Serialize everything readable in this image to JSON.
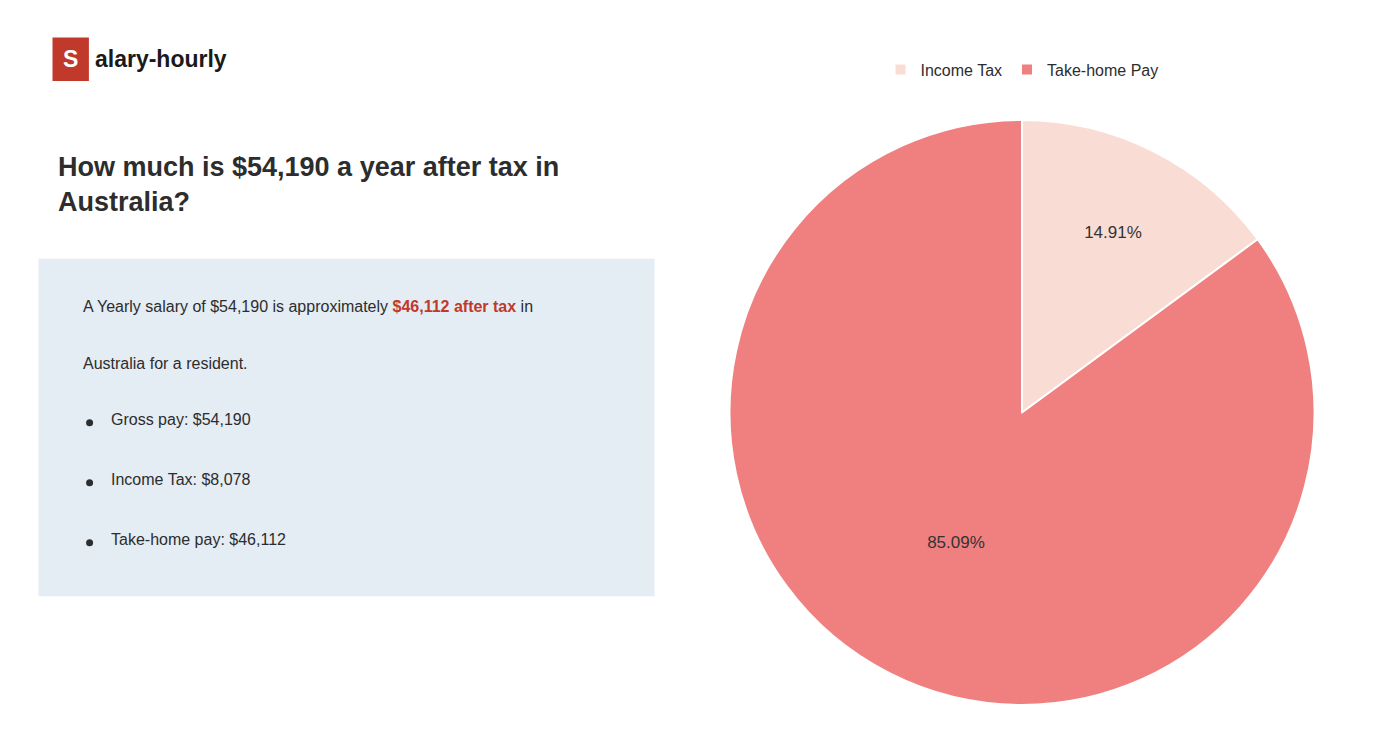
{
  "chart_data": {
    "type": "pie",
    "title": [
      "How much is $54,190 a year after tax in",
      "Australia?"
    ],
    "categories": [
      "Income Tax",
      "Take-home Pay"
    ],
    "values": [
      14.91,
      85.09
    ],
    "value_labels": [
      "14.91%",
      "85.09%"
    ],
    "data_labels": true,
    "colors": [
      "#f9ddd5",
      "#f08080"
    ],
    "legend": "top",
    "annotations": [
      {
        "text": "S",
        "color": "#c0392b"
      },
      {
        "text": "alary-hourly"
      },
      {
        "text": "A Yearly salary of $54,190 is approximately "
      },
      {
        "text": "$46,112 after tax",
        "color": "#c0392b"
      },
      {
        "text": " in"
      },
      {
        "text": "Australia for a resident."
      },
      {
        "text": "Gross pay: $54,190"
      },
      {
        "text": "Income Tax: $8,078"
      },
      {
        "text": "Take-home pay: $46,112"
      }
    ]
  }
}
